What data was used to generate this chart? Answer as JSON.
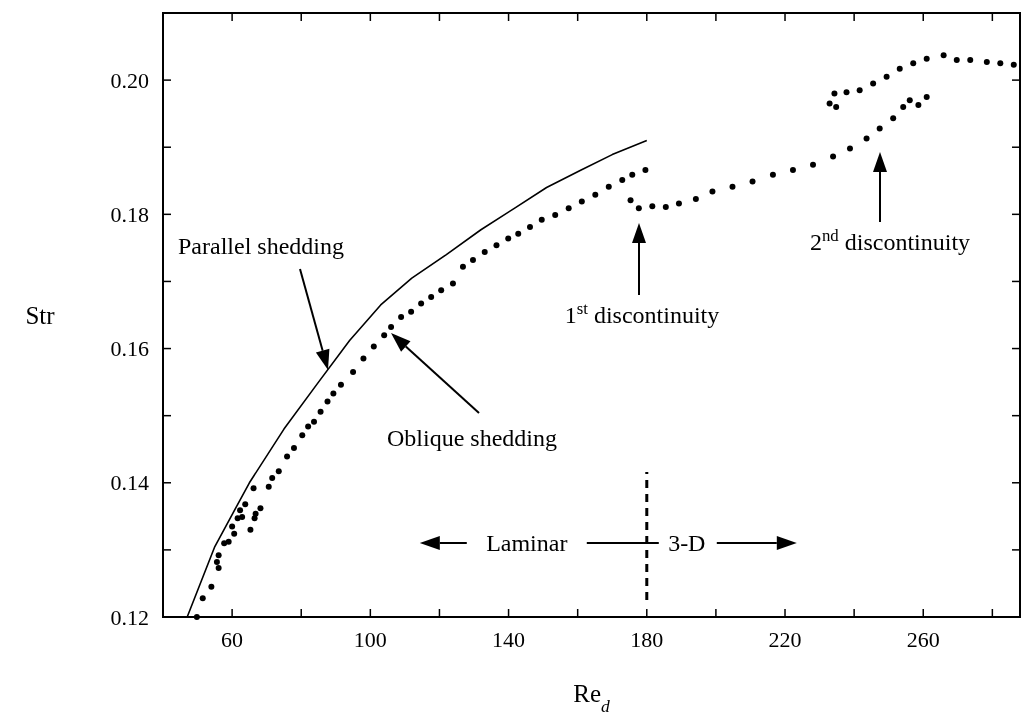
{
  "chart_data": {
    "type": "scatter",
    "xlabel": "Re$_{d}$",
    "ylabel": "Str",
    "xlim": [
      40,
      288
    ],
    "ylim": [
      0.12,
      0.21
    ],
    "xticks": [
      60,
      {
        "value": 80,
        "label": null
      },
      100,
      {
        "value": 120,
        "label": null
      },
      140,
      {
        "value": 160,
        "label": null
      },
      180,
      {
        "value": 200,
        "label": null
      },
      220,
      {
        "value": 240,
        "label": null
      },
      260,
      {
        "value": 280,
        "label": null
      }
    ],
    "yticks": [
      0.12,
      {
        "value": 0.13,
        "label": null
      },
      0.14,
      {
        "value": 0.15,
        "label": null
      },
      0.16,
      {
        "value": 0.17,
        "label": null
      },
      0.18,
      {
        "value": 0.19,
        "label": null
      },
      {
        "value": 0.2,
        "label": "0.20"
      }
    ],
    "series": [
      {
        "color": "#000000",
        "marker": "circle",
        "x": [
          49.8,
          51.5,
          54,
          56.1,
          55.6,
          56.1,
          57.7,
          59,
          60.6,
          60,
          61.6,
          62.9,
          62.3,
          63.8,
          65.3,
          66.5,
          66.8,
          68.2,
          66.2,
          70.6,
          71.6,
          73.5,
          75.9,
          77.9,
          80.3,
          82,
          83.7,
          85.6,
          87.6,
          89.3,
          91.5,
          95,
          98,
          101,
          104,
          106,
          108.9,
          111.8,
          114.7,
          117.6,
          120.5,
          123.9,
          126.8,
          129.7,
          133.1,
          136.5,
          139.9,
          142.8,
          146.2,
          149.6,
          153.5,
          157.4,
          161.2,
          165.1,
          169,
          172.9,
          175.8,
          179.6,
          175.3,
          177.7,
          181.6,
          185.5,
          189.3,
          194.2,
          199,
          204.8,
          210.6,
          216.5,
          222.3,
          228.1,
          233.9,
          238.8,
          243.6,
          247.4,
          251.3,
          254.2,
          256.1,
          258.6,
          261,
          232.9,
          234.8,
          234.3,
          237.8,
          241.6,
          245.5,
          249.4,
          253.2,
          257.1,
          261,
          265.9,
          269.7,
          273.6,
          278.4,
          282.3,
          286.2
        ],
        "values": [
          0.12,
          0.1228,
          0.1245,
          0.1273,
          0.1282,
          0.1292,
          0.131,
          0.1312,
          0.1324,
          0.1335,
          0.1347,
          0.1349,
          0.1359,
          0.1368,
          0.133,
          0.1347,
          0.1354,
          0.1362,
          0.1392,
          0.1394,
          0.1407,
          0.1417,
          0.1439,
          0.1452,
          0.1471,
          0.1484,
          0.1491,
          0.1506,
          0.1521,
          0.1533,
          0.1546,
          0.1565,
          0.1585,
          0.1603,
          0.162,
          0.1632,
          0.1647,
          0.1655,
          0.1667,
          0.1677,
          0.1687,
          0.1697,
          0.1722,
          0.1732,
          0.1744,
          0.1754,
          0.1764,
          0.1771,
          0.1781,
          0.1792,
          0.1799,
          0.1809,
          0.1819,
          0.1829,
          0.1841,
          0.1851,
          0.1859,
          0.1866,
          0.1821,
          0.1809,
          0.1812,
          0.1811,
          0.1816,
          0.1823,
          0.1834,
          0.1841,
          0.1849,
          0.1859,
          0.1866,
          0.1874,
          0.1886,
          0.1898,
          0.1913,
          0.1928,
          0.1943,
          0.196,
          0.197,
          0.1963,
          0.1975,
          0.1965,
          0.196,
          0.198,
          0.1982,
          0.1985,
          0.1995,
          0.2005,
          0.2017,
          0.2025,
          0.2032,
          0.2037,
          0.203,
          0.203,
          0.2027,
          0.2025,
          0.2023
        ]
      },
      {
        "type": "line",
        "color": "#000000",
        "marker": "none",
        "x": [
          47,
          55,
          65,
          75,
          85,
          94,
          103,
          112,
          122,
          132,
          142,
          151,
          161,
          170,
          180
        ],
        "values": [
          0.12,
          0.1305,
          0.14,
          0.148,
          0.155,
          0.1612,
          0.1665,
          0.1705,
          0.174,
          0.1777,
          0.181,
          0.184,
          0.1866,
          0.1889,
          0.191
        ]
      }
    ],
    "ref_lines": [
      {
        "axis": "x",
        "value": 180,
        "line_style": "dashed",
        "color": "#000000"
      }
    ],
    "annotations": [
      "Parallel shedding",
      "Oblique shedding",
      "1$^{st}$ discontinuity",
      "2$^{nd}$ discontinuity",
      "Laminar",
      "3-D"
    ]
  }
}
